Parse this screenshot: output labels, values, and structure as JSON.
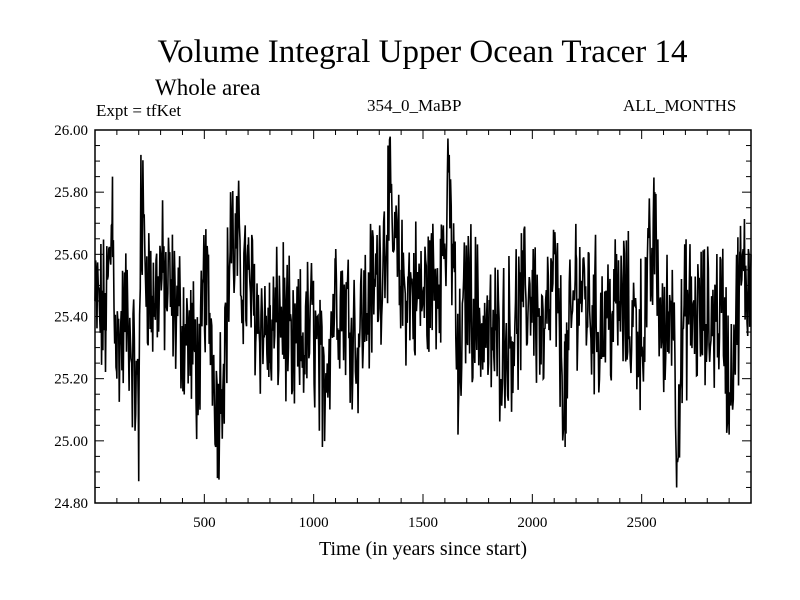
{
  "header": {
    "title": "Volume Integral Upper Ocean Tracer 14",
    "subtitle": "Whole area",
    "expt": "Expt = tfKet",
    "run": "354_0_MaBP",
    "months": "ALL_MONTHS"
  },
  "chart_data": {
    "type": "line",
    "title": "Volume Integral Upper Ocean Tracer 14",
    "subtitle": "Whole area",
    "xlabel": "Time (in years since start)",
    "ylabel": "",
    "xlim": [
      0,
      3000
    ],
    "ylim": [
      24.8,
      26.0
    ],
    "x_ticks": [
      500,
      1000,
      1500,
      2000,
      2500
    ],
    "x_tick_labels": [
      "500",
      "1000",
      "1500",
      "2000",
      "2500"
    ],
    "y_ticks": [
      24.8,
      25.0,
      25.2,
      25.4,
      25.6,
      25.8,
      26.0
    ],
    "y_tick_labels": [
      "24.80",
      "25.00",
      "25.20",
      "25.40",
      "25.60",
      "25.80",
      "26.00"
    ],
    "grid": false,
    "color": "#000000",
    "series_anchor_points": {
      "x": [
        0,
        50,
        80,
        100,
        150,
        200,
        210,
        260,
        300,
        400,
        480,
        500,
        540,
        560,
        600,
        620,
        700,
        800,
        860,
        900,
        1000,
        1040,
        1100,
        1200,
        1300,
        1340,
        1400,
        1500,
        1580,
        1620,
        1640,
        1660,
        1700,
        1800,
        1900,
        2000,
        2050,
        2100,
        2150,
        2200,
        2300,
        2400,
        2500,
        2560,
        2600,
        2640,
        2660,
        2700,
        2800,
        2870,
        2900,
        2950,
        3000
      ],
      "y": [
        25.45,
        25.38,
        25.85,
        25.2,
        25.42,
        24.87,
        25.92,
        25.45,
        25.6,
        25.35,
        25.1,
        25.6,
        25.25,
        24.88,
        25.35,
        25.8,
        25.55,
        25.25,
        25.42,
        25.15,
        25.35,
        24.98,
        25.55,
        25.3,
        25.62,
        25.95,
        25.55,
        25.48,
        25.65,
        25.92,
        25.7,
        25.02,
        25.55,
        25.25,
        25.3,
        25.55,
        25.2,
        25.6,
        24.98,
        25.6,
        25.35,
        25.45,
        25.3,
        25.8,
        25.2,
        25.55,
        24.85,
        25.4,
        25.35,
        25.45,
        25.02,
        25.55,
        25.6
      ]
    }
  }
}
